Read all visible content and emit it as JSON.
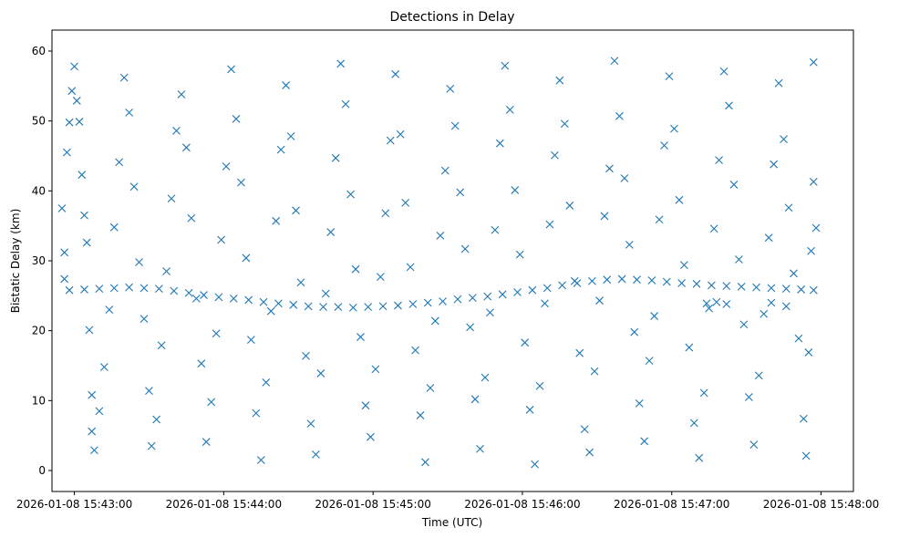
{
  "chart_data": {
    "type": "scatter",
    "title": "Detections in Delay",
    "xlabel": "Time (UTC)",
    "ylabel": "Bistatic Delay (km)",
    "x_unit": "UTC time",
    "x_ticks": [
      "2026-01-08 15:43:00",
      "2026-01-08 15:44:00",
      "2026-01-08 15:45:00",
      "2026-01-08 15:46:00",
      "2026-01-08 15:47:00",
      "2026-01-08 15:48:00"
    ],
    "y_ticks": [
      0,
      10,
      20,
      30,
      40,
      50,
      60
    ],
    "xlim": [
      "2026-01-08 15:42:51",
      "2026-01-08 15:48:13"
    ],
    "ylim": [
      -3.0,
      63.0
    ],
    "marker": "x",
    "grid": false,
    "legend": "none",
    "colors": {
      "series": "#1f77b4",
      "axes": "#000000",
      "background": "#ffffff"
    },
    "series": [
      {
        "points": [
          [
            "15:42:55",
            37.5
          ],
          [
            "15:42:56",
            27.4
          ],
          [
            "15:42:56",
            31.2
          ],
          [
            "15:42:57",
            45.5
          ],
          [
            "15:42:58",
            49.8
          ],
          [
            "15:42:59",
            54.3
          ],
          [
            "15:43:00",
            57.8
          ],
          [
            "15:43:01",
            52.9
          ],
          [
            "15:43:02",
            49.9
          ],
          [
            "15:43:03",
            42.3
          ],
          [
            "15:43:04",
            36.5
          ],
          [
            "15:43:05",
            32.6
          ],
          [
            "15:43:06",
            20.1
          ],
          [
            "15:43:07",
            10.8
          ],
          [
            "15:43:07",
            5.6
          ],
          [
            "15:43:08",
            2.9
          ],
          [
            "15:43:10",
            8.5
          ],
          [
            "15:43:12",
            14.8
          ],
          [
            "15:43:14",
            23.0
          ],
          [
            "15:43:16",
            34.8
          ],
          [
            "15:43:18",
            44.1
          ],
          [
            "15:43:20",
            56.2
          ],
          [
            "15:43:22",
            51.2
          ],
          [
            "15:43:24",
            40.6
          ],
          [
            "15:43:26",
            29.8
          ],
          [
            "15:43:28",
            21.7
          ],
          [
            "15:43:30",
            11.4
          ],
          [
            "15:43:31",
            3.5
          ],
          [
            "15:43:33",
            7.3
          ],
          [
            "15:43:35",
            17.9
          ],
          [
            "15:43:37",
            28.5
          ],
          [
            "15:43:39",
            38.9
          ],
          [
            "15:43:41",
            48.6
          ],
          [
            "15:43:43",
            53.8
          ],
          [
            "15:43:45",
            46.2
          ],
          [
            "15:43:47",
            36.1
          ],
          [
            "15:43:49",
            24.6
          ],
          [
            "15:43:51",
            15.3
          ],
          [
            "15:43:53",
            4.1
          ],
          [
            "15:43:55",
            9.8
          ],
          [
            "15:43:57",
            19.6
          ],
          [
            "15:43:59",
            33.0
          ],
          [
            "15:44:01",
            43.5
          ],
          [
            "15:44:03",
            57.4
          ],
          [
            "15:44:05",
            50.3
          ],
          [
            "15:44:07",
            41.2
          ],
          [
            "15:44:09",
            30.4
          ],
          [
            "15:44:11",
            18.7
          ],
          [
            "15:44:13",
            8.2
          ],
          [
            "15:44:15",
            1.5
          ],
          [
            "15:44:17",
            12.6
          ],
          [
            "15:44:19",
            22.8
          ],
          [
            "15:44:21",
            35.7
          ],
          [
            "15:44:23",
            45.9
          ],
          [
            "15:44:25",
            55.1
          ],
          [
            "15:44:27",
            47.8
          ],
          [
            "15:44:29",
            37.2
          ],
          [
            "15:44:31",
            26.9
          ],
          [
            "15:44:33",
            16.4
          ],
          [
            "15:44:35",
            6.7
          ],
          [
            "15:44:37",
            2.3
          ],
          [
            "15:44:39",
            13.9
          ],
          [
            "15:44:41",
            25.3
          ],
          [
            "15:44:43",
            34.1
          ],
          [
            "15:44:45",
            44.7
          ],
          [
            "15:44:47",
            58.2
          ],
          [
            "15:44:49",
            52.4
          ],
          [
            "15:44:51",
            39.5
          ],
          [
            "15:44:53",
            28.8
          ],
          [
            "15:44:55",
            19.1
          ],
          [
            "15:44:57",
            9.3
          ],
          [
            "15:44:59",
            4.8
          ],
          [
            "15:45:01",
            14.5
          ],
          [
            "15:45:03",
            27.7
          ],
          [
            "15:45:05",
            36.8
          ],
          [
            "15:45:07",
            47.2
          ],
          [
            "15:45:09",
            56.7
          ],
          [
            "15:45:11",
            48.1
          ],
          [
            "15:45:13",
            38.3
          ],
          [
            "15:45:15",
            29.1
          ],
          [
            "15:45:17",
            17.2
          ],
          [
            "15:45:19",
            7.9
          ],
          [
            "15:45:21",
            1.2
          ],
          [
            "15:45:23",
            11.8
          ],
          [
            "15:45:25",
            21.4
          ],
          [
            "15:45:27",
            33.6
          ],
          [
            "15:45:29",
            42.9
          ],
          [
            "15:45:31",
            54.6
          ],
          [
            "15:45:33",
            49.3
          ],
          [
            "15:45:35",
            39.8
          ],
          [
            "15:45:37",
            31.7
          ],
          [
            "15:45:39",
            20.5
          ],
          [
            "15:45:41",
            10.2
          ],
          [
            "15:45:43",
            3.1
          ],
          [
            "15:45:45",
            13.3
          ],
          [
            "15:45:47",
            22.6
          ],
          [
            "15:45:49",
            34.4
          ],
          [
            "15:45:51",
            46.8
          ],
          [
            "15:45:53",
            57.9
          ],
          [
            "15:45:55",
            51.6
          ],
          [
            "15:45:57",
            40.1
          ],
          [
            "15:45:59",
            30.9
          ],
          [
            "15:46:01",
            18.3
          ],
          [
            "15:46:03",
            8.7
          ],
          [
            "15:46:05",
            0.9
          ],
          [
            "15:46:07",
            12.1
          ],
          [
            "15:46:09",
            23.9
          ],
          [
            "15:46:11",
            35.2
          ],
          [
            "15:46:13",
            45.1
          ],
          [
            "15:46:15",
            55.8
          ],
          [
            "15:46:17",
            49.6
          ],
          [
            "15:46:19",
            37.9
          ],
          [
            "15:46:21",
            27.1
          ],
          [
            "15:46:23",
            16.8
          ],
          [
            "15:46:25",
            5.9
          ],
          [
            "15:46:27",
            2.6
          ],
          [
            "15:46:29",
            14.2
          ],
          [
            "15:46:31",
            24.3
          ],
          [
            "15:46:33",
            36.4
          ],
          [
            "15:46:35",
            43.2
          ],
          [
            "15:46:37",
            58.6
          ],
          [
            "15:46:39",
            50.7
          ],
          [
            "15:46:41",
            41.8
          ],
          [
            "15:46:43",
            32.3
          ],
          [
            "15:46:45",
            19.8
          ],
          [
            "15:46:47",
            9.6
          ],
          [
            "15:46:49",
            4.2
          ],
          [
            "15:46:51",
            15.7
          ],
          [
            "15:46:53",
            22.1
          ],
          [
            "15:46:55",
            35.9
          ],
          [
            "15:46:57",
            46.5
          ],
          [
            "15:46:59",
            56.4
          ],
          [
            "15:47:01",
            48.9
          ],
          [
            "15:47:03",
            38.7
          ],
          [
            "15:47:05",
            29.4
          ],
          [
            "15:47:07",
            17.6
          ],
          [
            "15:47:09",
            6.8
          ],
          [
            "15:47:11",
            1.8
          ],
          [
            "15:47:13",
            11.1
          ],
          [
            "15:47:15",
            23.2
          ],
          [
            "15:47:17",
            34.6
          ],
          [
            "15:47:19",
            44.4
          ],
          [
            "15:47:21",
            57.1
          ],
          [
            "15:47:23",
            52.2
          ],
          [
            "15:47:25",
            40.9
          ],
          [
            "15:47:27",
            30.2
          ],
          [
            "15:47:29",
            20.9
          ],
          [
            "15:47:31",
            10.5
          ],
          [
            "15:47:33",
            3.7
          ],
          [
            "15:47:35",
            13.6
          ],
          [
            "15:47:37",
            22.4
          ],
          [
            "15:47:39",
            33.3
          ],
          [
            "15:47:41",
            43.8
          ],
          [
            "15:47:43",
            55.4
          ],
          [
            "15:47:45",
            47.4
          ],
          [
            "15:47:47",
            37.6
          ],
          [
            "15:47:49",
            28.2
          ],
          [
            "15:47:51",
            18.9
          ],
          [
            "15:47:53",
            7.4
          ],
          [
            "15:47:54",
            2.1
          ],
          [
            "15:47:55",
            16.9
          ],
          [
            "15:47:56",
            31.4
          ],
          [
            "15:47:57",
            41.3
          ],
          [
            "15:47:57",
            58.4
          ],
          [
            "15:47:58",
            34.7
          ],
          [
            "15:42:58",
            25.8
          ],
          [
            "15:43:04",
            25.9
          ],
          [
            "15:43:10",
            26.0
          ],
          [
            "15:43:16",
            26.1
          ],
          [
            "15:43:22",
            26.2
          ],
          [
            "15:43:28",
            26.1
          ],
          [
            "15:43:34",
            26.0
          ],
          [
            "15:43:40",
            25.7
          ],
          [
            "15:43:46",
            25.4
          ],
          [
            "15:43:52",
            25.1
          ],
          [
            "15:43:58",
            24.8
          ],
          [
            "15:44:04",
            24.6
          ],
          [
            "15:44:10",
            24.4
          ],
          [
            "15:44:16",
            24.1
          ],
          [
            "15:44:22",
            23.9
          ],
          [
            "15:44:28",
            23.7
          ],
          [
            "15:44:34",
            23.5
          ],
          [
            "15:44:40",
            23.4
          ],
          [
            "15:44:46",
            23.4
          ],
          [
            "15:44:52",
            23.3
          ],
          [
            "15:44:58",
            23.4
          ],
          [
            "15:45:04",
            23.5
          ],
          [
            "15:45:10",
            23.6
          ],
          [
            "15:45:16",
            23.8
          ],
          [
            "15:45:22",
            24.0
          ],
          [
            "15:45:28",
            24.2
          ],
          [
            "15:45:34",
            24.5
          ],
          [
            "15:45:40",
            24.7
          ],
          [
            "15:45:46",
            24.9
          ],
          [
            "15:45:52",
            25.2
          ],
          [
            "15:45:58",
            25.5
          ],
          [
            "15:46:04",
            25.8
          ],
          [
            "15:46:10",
            26.1
          ],
          [
            "15:46:16",
            26.5
          ],
          [
            "15:46:22",
            26.8
          ],
          [
            "15:46:28",
            27.1
          ],
          [
            "15:46:34",
            27.3
          ],
          [
            "15:46:40",
            27.4
          ],
          [
            "15:46:46",
            27.3
          ],
          [
            "15:46:52",
            27.2
          ],
          [
            "15:46:58",
            27.0
          ],
          [
            "15:47:04",
            26.8
          ],
          [
            "15:47:10",
            26.7
          ],
          [
            "15:47:16",
            26.5
          ],
          [
            "15:47:22",
            26.4
          ],
          [
            "15:47:28",
            26.3
          ],
          [
            "15:47:34",
            26.2
          ],
          [
            "15:47:40",
            26.1
          ],
          [
            "15:47:46",
            26.0
          ],
          [
            "15:47:52",
            25.9
          ],
          [
            "15:47:57",
            25.8
          ],
          [
            "15:47:14",
            23.9
          ],
          [
            "15:47:18",
            24.1
          ],
          [
            "15:47:22",
            23.8
          ],
          [
            "15:47:40",
            24.0
          ],
          [
            "15:47:46",
            23.5
          ]
        ]
      }
    ]
  }
}
